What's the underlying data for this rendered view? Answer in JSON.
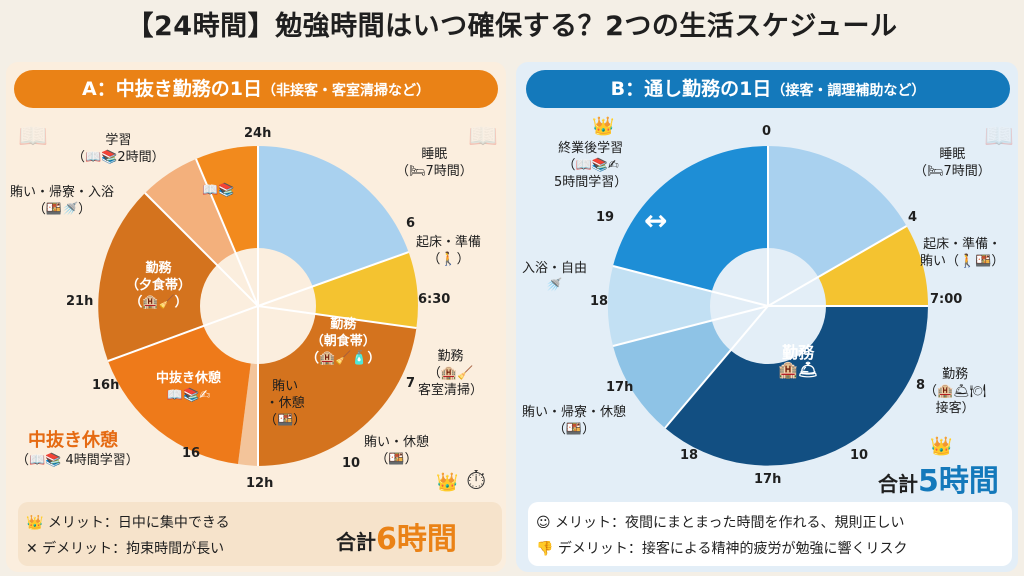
{
  "title": "【24時間】勉強時間はいつ確保する？2つの生活スケジュール",
  "panel_a": {
    "banner_main": "A：中抜き勤務の1日",
    "banner_sub": "（非接客・客室清掃など）",
    "ticks": {
      "t24": "24h",
      "t6": "6",
      "t630": "6:30",
      "t7": "7",
      "t10": "10",
      "t12": "12h",
      "t16a": "16",
      "t16b": "16h",
      "t21": "21h"
    },
    "labels": {
      "study_title": "学習",
      "study_sub": "（📖📚2時間）",
      "meal_title": "賄い・帰寮・入浴",
      "meal_sub": "（🍱🚿）",
      "sleep_title": "睡眠",
      "sleep_sub": "（🛏7時間）",
      "wake_title": "起床・準備",
      "wake_sub": "（🚶）",
      "work_title": "勤務",
      "work_sub": "（🏨🧹",
      "work_sub2": "客室清掃）",
      "meal2": "賄い・休憩",
      "meal2_icon": "（🍱）"
    },
    "inner": {
      "dinner_title": "勤務",
      "dinner_sub": "（夕食帯）",
      "dinner_icon": "（🏨🧹）",
      "break_title": "中抜き休憩",
      "break_icon": "📖📚✍",
      "morning_title": "勤務",
      "morning_sub": "（朝食帯）",
      "morning_icon": "（🏨🧹🧴）",
      "rest_title": "賄い",
      "rest_sub": "・休憩",
      "rest_icon": "（🍱）",
      "center_icon": "📖📚"
    },
    "callout": "中抜き休憩",
    "callout_sub": "（📖📚 4時間学習）",
    "merit": "👑 メリット：日中に集中できる",
    "demerit": "✕ デメリット：拘束時間が長い",
    "total_prefix": "合計",
    "total_num": "6時間"
  },
  "panel_b": {
    "banner_main": "B：通し勤務の1日",
    "banner_sub": "（接客・調理補助など）",
    "ticks": {
      "t0": "0",
      "t4": "4",
      "t700": "7:00",
      "t8": "8",
      "t10": "10",
      "t17a": "17h",
      "t17b": "17h",
      "t18a": "18",
      "t18b": "18",
      "t19": "19"
    },
    "labels": {
      "study_title": "終業後学習",
      "study_sub": "（📖📚✍",
      "study_sub2": "5時間学習）",
      "sleep_title": "睡眠",
      "sleep_sub": "（🛏7時間）",
      "wake_title": "起床・準備・",
      "wake_sub": "賄い（🚶🍱）",
      "bath_title": "入浴・自由",
      "bath_sub": "🚿",
      "work_title": "勤務",
      "work_sub": "（🏨🛎🍽",
      "work_sub2": "接客）",
      "meal_title": "賄い・帰寮・休憩",
      "meal_sub": "（🍱）"
    },
    "inner": {
      "work_title": "勤務",
      "work_icon": "🏨🛎"
    },
    "merit": "☺ メリット：夜間にまとまった時間を作れる、規則正しい",
    "demerit": "👎 デメリット：接客による精神的疲労が勉強に響くリスク",
    "total_prefix": "合計",
    "total_num": "5時間"
  },
  "colors": {
    "orange": "#ea8216",
    "blue": "#1479bb"
  }
}
